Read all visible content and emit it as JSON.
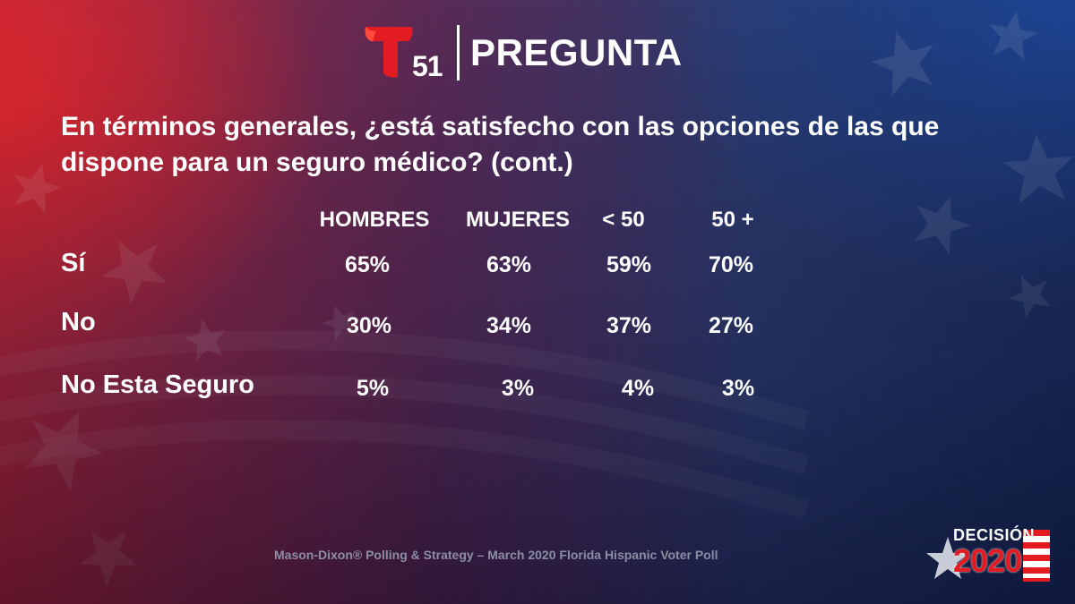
{
  "brand": {
    "channel_number": "51",
    "title": "PREGUNTA"
  },
  "question": "En términos generales, ¿está satisfecho con las opciones de las que dispone para un seguro médico? (cont.)",
  "chart_data": {
    "type": "table",
    "columns": [
      "HOMBRES",
      "MUJERES",
      "< 50",
      "50 +"
    ],
    "rows": [
      {
        "label": "Sí",
        "values": [
          "65%",
          "63%",
          "59%",
          "70%"
        ]
      },
      {
        "label": "No",
        "values": [
          "30%",
          "34%",
          "37%",
          "27%"
        ]
      },
      {
        "label": "No Esta Seguro",
        "values": [
          "5%",
          "3%",
          "4%",
          "3%"
        ]
      }
    ]
  },
  "source": "Mason-Dixon® Polling & Strategy – March 2020 Florida Hispanic Voter Poll",
  "decision_badge": {
    "word": "DECISIÓN",
    "year": "2020"
  },
  "colors": {
    "brand_red": "#e31b23",
    "source_text": "#8a8fa5"
  }
}
